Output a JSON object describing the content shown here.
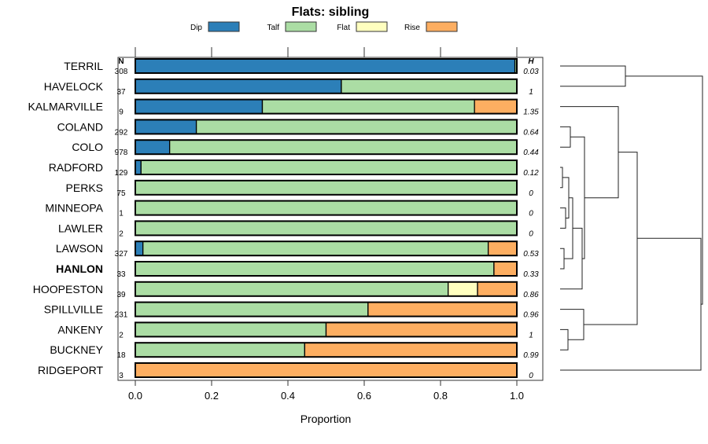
{
  "chart_data": {
    "type": "bar",
    "orientation": "horizontal-stacked",
    "title": "Flats: sibling",
    "xlabel": "Proportion",
    "xlim": [
      0,
      1
    ],
    "xticks": [
      "0.0",
      "0.2",
      "0.4",
      "0.6",
      "0.8",
      "1.0"
    ],
    "n_header": "N",
    "h_header": "H",
    "legend_position": "top",
    "series": [
      {
        "name": "Dip",
        "color": "#2c7fb8"
      },
      {
        "name": "Talf",
        "color": "#abdda4"
      },
      {
        "name": "Flat",
        "color": "#ffffbf"
      },
      {
        "name": "Rise",
        "color": "#fdae61"
      }
    ],
    "rows": [
      {
        "name": "TERRIL",
        "n": "308",
        "h": "0.03",
        "bold": false,
        "values": [
          0.995,
          0.005,
          0,
          0
        ]
      },
      {
        "name": "HAVELOCK",
        "n": "37",
        "h": "1",
        "bold": false,
        "values": [
          0.54,
          0.46,
          0,
          0
        ]
      },
      {
        "name": "KALMARVILLE",
        "n": "9",
        "h": "1.35",
        "bold": false,
        "values": [
          0.333,
          0.556,
          0,
          0.111
        ]
      },
      {
        "name": "COLAND",
        "n": "292",
        "h": "0.64",
        "bold": false,
        "values": [
          0.16,
          0.84,
          0,
          0
        ]
      },
      {
        "name": "COLO",
        "n": "978",
        "h": "0.44",
        "bold": false,
        "values": [
          0.09,
          0.91,
          0,
          0
        ]
      },
      {
        "name": "RADFORD",
        "n": "129",
        "h": "0.12",
        "bold": false,
        "values": [
          0.015,
          0.985,
          0,
          0
        ]
      },
      {
        "name": "PERKS",
        "n": "75",
        "h": "0",
        "bold": false,
        "values": [
          0,
          1,
          0,
          0
        ]
      },
      {
        "name": "MINNEOPA",
        "n": "1",
        "h": "0",
        "bold": false,
        "values": [
          0,
          1,
          0,
          0
        ]
      },
      {
        "name": "LAWLER",
        "n": "2",
        "h": "0",
        "bold": false,
        "values": [
          0,
          1,
          0,
          0
        ]
      },
      {
        "name": "LAWSON",
        "n": "327",
        "h": "0.53",
        "bold": false,
        "values": [
          0.02,
          0.905,
          0,
          0.075
        ]
      },
      {
        "name": "HANLON",
        "n": "33",
        "h": "0.33",
        "bold": true,
        "values": [
          0,
          0.94,
          0,
          0.06
        ]
      },
      {
        "name": "HOOPESTON",
        "n": "39",
        "h": "0.86",
        "bold": false,
        "values": [
          0,
          0.82,
          0.077,
          0.103
        ]
      },
      {
        "name": "SPILLVILLE",
        "n": "231",
        "h": "0.96",
        "bold": false,
        "values": [
          0,
          0.61,
          0,
          0.39
        ]
      },
      {
        "name": "ANKENY",
        "n": "2",
        "h": "1",
        "bold": false,
        "values": [
          0,
          0.5,
          0,
          0.5
        ]
      },
      {
        "name": "BUCKNEY",
        "n": "18",
        "h": "0.99",
        "bold": false,
        "values": [
          0,
          0.444,
          0,
          0.556
        ]
      },
      {
        "name": "RIDGEPORT",
        "n": "3",
        "h": "0",
        "bold": false,
        "values": [
          0,
          0,
          0,
          1
        ]
      }
    ]
  }
}
